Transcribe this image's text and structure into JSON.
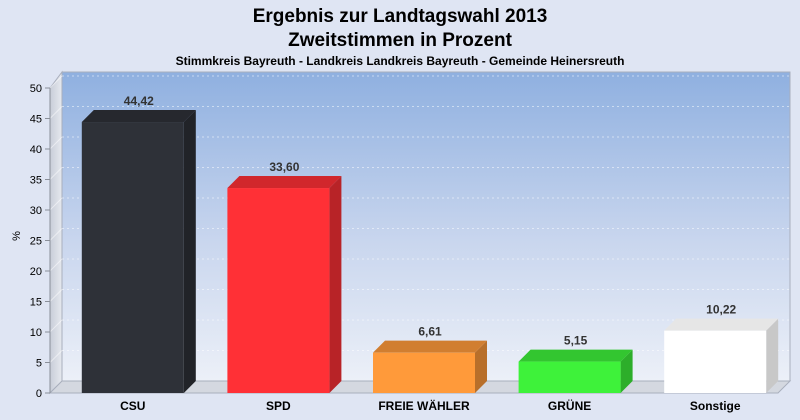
{
  "chart_data": {
    "type": "bar",
    "title": "Ergebnis zur Landtagswahl 2013",
    "title_line2": "Zweitstimmen in Prozent",
    "subtitle": "Stimmkreis Bayreuth - Landkreis Landkreis Bayreuth - Gemeinde Heinersreuth",
    "ylabel": "%",
    "xlabel": "",
    "ylim": [
      0,
      50
    ],
    "ytick_step": 5,
    "grid": true,
    "categories": [
      "CSU",
      "SPD",
      "FREIE WÄHLER",
      "GRÜNE",
      "Sonstige"
    ],
    "values": [
      44.42,
      33.6,
      6.61,
      5.15,
      10.22
    ],
    "value_labels": [
      "44,42",
      "33,60",
      "6,61",
      "5,15",
      "10,22"
    ],
    "colors": [
      "#2e3138",
      "#ff3036",
      "#ff9a3a",
      "#3ef23a",
      "#ffffff"
    ]
  }
}
